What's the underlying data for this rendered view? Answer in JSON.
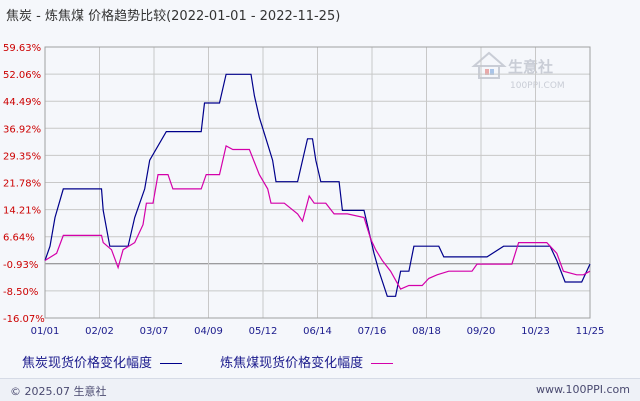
{
  "title": "焦炭 - 炼焦煤 价格趋势比较(2022-01-01 - 2022-11-25)",
  "watermark": {
    "brand": "生意社",
    "url": "100PPI.COM"
  },
  "footer": {
    "copyright": "© 2025.07 生意社",
    "url": "www.100PPI.com"
  },
  "colors": {
    "series1": "#00008b",
    "series2": "#d400aa",
    "grid": "#c8c8c8",
    "zero": "#7f7f7f"
  },
  "chart_data": {
    "type": "line",
    "title": "焦炭 - 炼焦煤 价格趋势比较(2022-01-01 - 2022-11-25)",
    "x_tick_labels": [
      "01/01",
      "02/02",
      "03/07",
      "04/09",
      "05/12",
      "06/14",
      "07/16",
      "08/18",
      "09/20",
      "10/23",
      "11/25"
    ],
    "x_range": [
      "2022-01-01",
      "2022-11-25"
    ],
    "y_tick_labels": [
      "59.63%",
      "52.06%",
      "44.49%",
      "36.92%",
      "29.35%",
      "21.78%",
      "14.21%",
      "6.64%",
      "-0.93%",
      "-8.50%",
      "-16.07%"
    ],
    "ylim": [
      -16.07,
      59.63
    ],
    "y_unit": "%",
    "grid": true,
    "legend_position": "bottom",
    "series": [
      {
        "name": "焦炭现货价格变化幅度",
        "color": "#00008b",
        "points": [
          [
            "2022-01-01",
            0
          ],
          [
            "2022-01-04",
            4
          ],
          [
            "2022-01-07",
            12
          ],
          [
            "2022-01-12",
            20
          ],
          [
            "2022-01-28",
            20
          ],
          [
            "2022-02-04",
            20
          ],
          [
            "2022-02-05",
            14
          ],
          [
            "2022-02-09",
            4
          ],
          [
            "2022-02-12",
            4
          ],
          [
            "2022-02-20",
            4
          ],
          [
            "2022-02-24",
            12
          ],
          [
            "2022-03-02",
            20
          ],
          [
            "2022-03-05",
            28
          ],
          [
            "2022-03-15",
            36
          ],
          [
            "2022-03-29",
            36
          ],
          [
            "2022-04-05",
            36
          ],
          [
            "2022-04-07",
            44
          ],
          [
            "2022-04-16",
            44
          ],
          [
            "2022-04-20",
            52
          ],
          [
            "2022-05-05",
            52
          ],
          [
            "2022-05-07",
            46
          ],
          [
            "2022-05-10",
            40
          ],
          [
            "2022-05-14",
            34
          ],
          [
            "2022-05-18",
            28
          ],
          [
            "2022-05-20",
            22
          ],
          [
            "2022-05-29",
            22
          ],
          [
            "2022-06-02",
            22
          ],
          [
            "2022-06-04",
            26
          ],
          [
            "2022-06-08",
            34
          ],
          [
            "2022-06-11",
            34
          ],
          [
            "2022-06-13",
            28
          ],
          [
            "2022-06-16",
            22
          ],
          [
            "2022-06-27",
            22
          ],
          [
            "2022-06-29",
            14
          ],
          [
            "2022-07-12",
            14
          ],
          [
            "2022-07-15",
            8
          ],
          [
            "2022-07-18",
            2
          ],
          [
            "2022-07-21",
            -3
          ],
          [
            "2022-07-26",
            -10
          ],
          [
            "2022-07-31",
            -10
          ],
          [
            "2022-08-03",
            -3
          ],
          [
            "2022-08-08",
            -3
          ],
          [
            "2022-08-11",
            4
          ],
          [
            "2022-08-20",
            4
          ],
          [
            "2022-08-26",
            4
          ],
          [
            "2022-08-29",
            1
          ],
          [
            "2022-09-10",
            1
          ],
          [
            "2022-09-24",
            1
          ],
          [
            "2022-10-04",
            4
          ],
          [
            "2022-10-22",
            4
          ],
          [
            "2022-10-28",
            4
          ],
          [
            "2022-11-01",
            4
          ],
          [
            "2022-11-05",
            0
          ],
          [
            "2022-11-10",
            -6
          ],
          [
            "2022-11-20",
            -6
          ],
          [
            "2022-11-25",
            -1
          ]
        ]
      },
      {
        "name": "炼焦煤现货价格变化幅度",
        "color": "#d400aa",
        "points": [
          [
            "2022-01-01",
            0
          ],
          [
            "2022-01-08",
            2
          ],
          [
            "2022-01-12",
            7
          ],
          [
            "2022-01-28",
            7
          ],
          [
            "2022-02-04",
            7
          ],
          [
            "2022-02-05",
            5
          ],
          [
            "2022-02-10",
            3
          ],
          [
            "2022-02-14",
            -2
          ],
          [
            "2022-02-17",
            3
          ],
          [
            "2022-02-24",
            5
          ],
          [
            "2022-03-01",
            10
          ],
          [
            "2022-03-03",
            16
          ],
          [
            "2022-03-07",
            16
          ],
          [
            "2022-03-10",
            24
          ],
          [
            "2022-03-16",
            24
          ],
          [
            "2022-03-19",
            20
          ],
          [
            "2022-03-24",
            20
          ],
          [
            "2022-04-05",
            20
          ],
          [
            "2022-04-08",
            24
          ],
          [
            "2022-04-16",
            24
          ],
          [
            "2022-04-20",
            32
          ],
          [
            "2022-04-24",
            31
          ],
          [
            "2022-05-04",
            31
          ],
          [
            "2022-05-10",
            24
          ],
          [
            "2022-05-15",
            20
          ],
          [
            "2022-05-17",
            16
          ],
          [
            "2022-05-25",
            16
          ],
          [
            "2022-06-02",
            13
          ],
          [
            "2022-06-05",
            11
          ],
          [
            "2022-06-09",
            18
          ],
          [
            "2022-06-12",
            16
          ],
          [
            "2022-06-19",
            16
          ],
          [
            "2022-06-24",
            13
          ],
          [
            "2022-07-02",
            13
          ],
          [
            "2022-07-12",
            12
          ],
          [
            "2022-07-16",
            6
          ],
          [
            "2022-07-19",
            3
          ],
          [
            "2022-07-23",
            0
          ],
          [
            "2022-07-28",
            -3
          ],
          [
            "2022-08-03",
            -8
          ],
          [
            "2022-08-08",
            -7
          ],
          [
            "2022-08-16",
            -7
          ],
          [
            "2022-08-20",
            -5
          ],
          [
            "2022-08-25",
            -4
          ],
          [
            "2022-09-01",
            -3
          ],
          [
            "2022-09-15",
            -3
          ],
          [
            "2022-09-18",
            -1
          ],
          [
            "2022-10-01",
            -1
          ],
          [
            "2022-10-09",
            -1
          ],
          [
            "2022-10-13",
            5
          ],
          [
            "2022-10-30",
            5
          ],
          [
            "2022-11-05",
            2
          ],
          [
            "2022-11-09",
            -3
          ],
          [
            "2022-11-17",
            -4
          ],
          [
            "2022-11-21",
            -4
          ],
          [
            "2022-11-25",
            -3
          ]
        ]
      }
    ]
  }
}
